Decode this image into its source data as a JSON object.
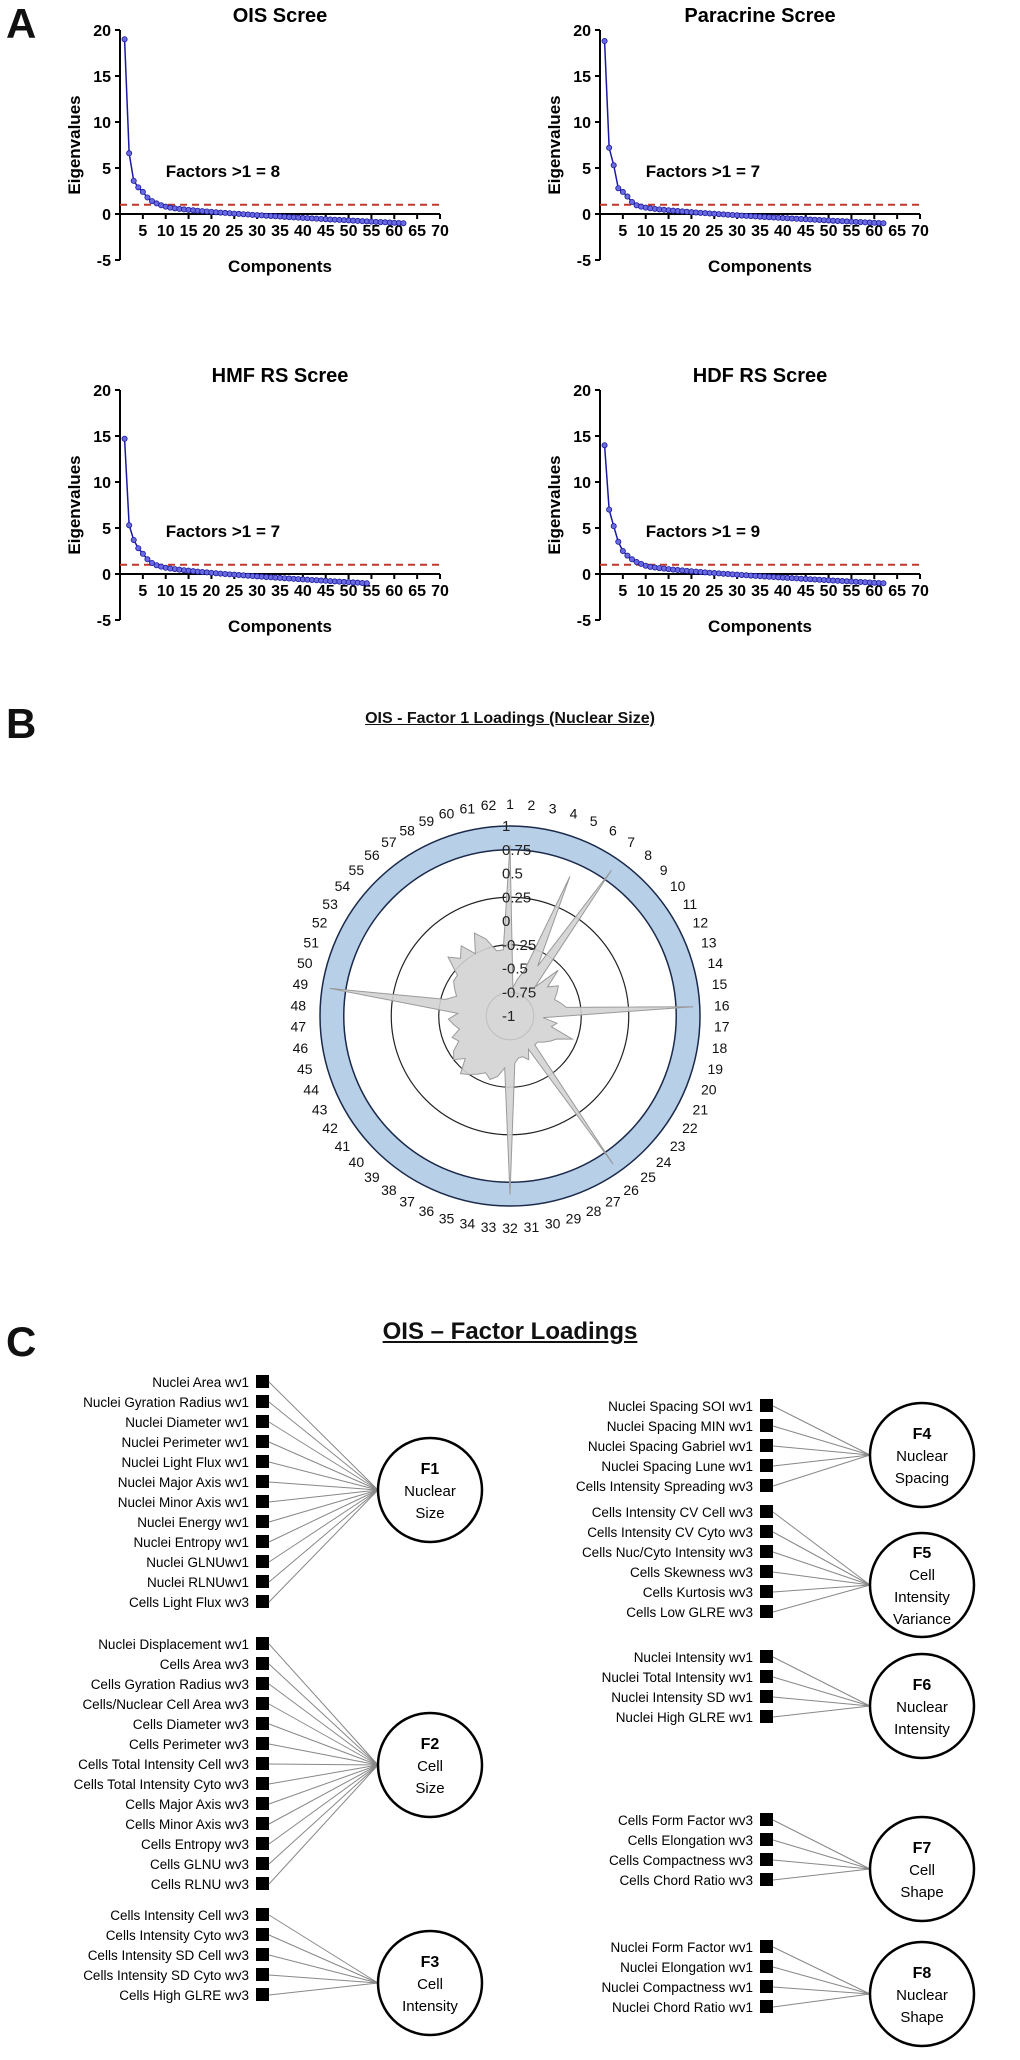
{
  "panels": {
    "a": "A",
    "b": "B",
    "c": "C"
  },
  "chart_data": [
    {
      "type": "line",
      "title": "OIS Scree",
      "xlabel": "Components",
      "ylabel": "Eigenvalues",
      "xlim": [
        0,
        70
      ],
      "ylim": [
        -5,
        20
      ],
      "xticks": [
        5,
        10,
        15,
        20,
        25,
        30,
        35,
        40,
        45,
        50,
        55,
        60,
        65,
        70
      ],
      "yticks": [
        -5,
        0,
        5,
        10,
        15,
        20
      ],
      "threshold": 1,
      "annotation": "Factors >1 = 8",
      "n": 62,
      "values": [
        19,
        6.6,
        3.6,
        2.9,
        2.4,
        1.8,
        1.4,
        1.15,
        0.95,
        0.8
      ]
    },
    {
      "type": "line",
      "title": "Paracrine Scree",
      "xlabel": "Components",
      "ylabel": "Eigenvalues",
      "xlim": [
        0,
        70
      ],
      "ylim": [
        -5,
        20
      ],
      "xticks": [
        5,
        10,
        15,
        20,
        25,
        30,
        35,
        40,
        45,
        50,
        55,
        60,
        65,
        70
      ],
      "yticks": [
        -5,
        0,
        5,
        10,
        15,
        20
      ],
      "threshold": 1,
      "annotation": "Factors >1 = 7",
      "n": 62,
      "values": [
        18.8,
        7.2,
        5.3,
        2.8,
        2.4,
        1.9,
        1.3,
        0.95,
        0.8
      ]
    },
    {
      "type": "line",
      "title": "HMF RS Scree",
      "xlabel": "Components",
      "ylabel": "Eigenvalues",
      "xlim": [
        0,
        70
      ],
      "ylim": [
        -5,
        20
      ],
      "xticks": [
        5,
        10,
        15,
        20,
        25,
        30,
        35,
        40,
        45,
        50,
        55,
        60,
        65,
        70
      ],
      "yticks": [
        -5,
        0,
        5,
        10,
        15,
        20
      ],
      "threshold": 1,
      "annotation": "Factors >1 = 7",
      "n": 54,
      "values": [
        14.7,
        5.3,
        3.7,
        2.8,
        2.2,
        1.6,
        1.2,
        0.95,
        0.8
      ]
    },
    {
      "type": "line",
      "title": "HDF RS Scree",
      "xlabel": "Components",
      "ylabel": "Eigenvalues",
      "xlim": [
        0,
        70
      ],
      "ylim": [
        -5,
        20
      ],
      "xticks": [
        5,
        10,
        15,
        20,
        25,
        30,
        35,
        40,
        45,
        50,
        55,
        60,
        65,
        70
      ],
      "yticks": [
        -5,
        0,
        5,
        10,
        15,
        20
      ],
      "threshold": 1,
      "annotation": "Factors >1 = 9",
      "n": 62,
      "values": [
        14,
        7,
        5.2,
        3.5,
        2.5,
        2,
        1.6,
        1.3,
        1.1,
        0.9
      ]
    },
    {
      "type": "radar",
      "title": "OIS - Factor 1 Loadings (Nuclear Size)",
      "rlim": [
        -1,
        1
      ],
      "ticks": [
        "1",
        "0.75",
        "0.5",
        "0.25",
        "0",
        "-0.25",
        "-0.5",
        "-0.75",
        "-1"
      ],
      "highlight_band": [
        0.75,
        1
      ],
      "categories": [
        "1",
        "2",
        "3",
        "4",
        "5",
        "6",
        "7",
        "8",
        "9",
        "10",
        "11",
        "12",
        "13",
        "14",
        "15",
        "16",
        "17",
        "18",
        "19",
        "20",
        "21",
        "22",
        "23",
        "24",
        "25",
        "26",
        "27",
        "28",
        "29",
        "30",
        "31",
        "32",
        "33",
        "34",
        "35",
        "36",
        "37",
        "38",
        "39",
        "40",
        "41",
        "42",
        "43",
        "44",
        "45",
        "46",
        "47",
        "48",
        "49",
        "50",
        "51",
        "52",
        "53",
        "54",
        "55",
        "56",
        "57",
        "58",
        "59",
        "60",
        "61",
        "62"
      ],
      "values": [
        0.8,
        -0.7,
        -0.6,
        -0.5,
        0.6,
        -0.4,
        0.87,
        -0.6,
        -0.3,
        -0.5,
        -0.4,
        -0.45,
        -0.5,
        -0.45,
        -0.4,
        0.93,
        -0.65,
        -0.5,
        -0.55,
        -0.3,
        -0.45,
        -0.5,
        -0.55,
        -0.6,
        -0.6,
        0.9,
        -0.6,
        -0.5,
        -0.55,
        -0.55,
        -0.5,
        0.88,
        -0.45,
        -0.35,
        -0.3,
        -0.35,
        -0.3,
        -0.25,
        -0.2,
        -0.35,
        -0.25,
        -0.3,
        -0.4,
        -0.35,
        -0.45,
        -0.4,
        -0.35,
        -0.45,
        0.92,
        -0.3,
        -0.4,
        -0.35,
        -0.3,
        -0.3,
        -0.1,
        -0.2,
        -0.1,
        -0.25,
        -0.05,
        -0.15,
        -0.3,
        -0.3
      ]
    }
  ],
  "panel_c": {
    "title": "OIS – Factor Loadings",
    "factors": [
      {
        "id": "F1",
        "name1": "Nuclear",
        "name2": "Size",
        "name3": "",
        "items": [
          "Nuclei Area wv1",
          "Nuclei Gyration Radius wv1",
          "Nuclei Diameter wv1",
          "Nuclei Perimeter wv1",
          "Nuclei Light Flux wv1",
          "Nuclei Major Axis wv1",
          "Nuclei Minor Axis wv1",
          "Nuclei Energy wv1",
          "Nuclei Entropy wv1",
          "Nuclei GLNUwv1",
          "Nuclei RLNUwv1",
          "Cells Light Flux wv3"
        ]
      },
      {
        "id": "F2",
        "name1": "Cell",
        "name2": "Size",
        "name3": "",
        "items": [
          "Nuclei Displacement wv1",
          "Cells Area wv3",
          "Cells Gyration Radius wv3",
          "Cells/Nuclear Cell Area wv3",
          "Cells Diameter wv3",
          "Cells Perimeter wv3",
          "Cells Total Intensity Cell  wv3",
          "Cells Total Intensity Cyto  wv3",
          "Cells Major Axis wv3",
          "Cells Minor Axis wv3",
          "Cells Entropy wv3",
          "Cells GLNU wv3",
          "Cells RLNU wv3"
        ]
      },
      {
        "id": "F3",
        "name1": "Cell",
        "name2": "Intensity",
        "name3": "",
        "items": [
          "Cells Intensity Cell wv3",
          "Cells Intensity Cyto wv3",
          "Cells Intensity SD Cell wv3",
          "Cells Intensity SD Cyto wv3",
          "Cells High GLRE wv3"
        ]
      },
      {
        "id": "F4",
        "name1": "Nuclear",
        "name2": "Spacing",
        "name3": "",
        "items": [
          "Nuclei Spacing SOI wv1",
          "Nuclei Spacing MIN  wv1",
          "Nuclei Spacing Gabriel wv1",
          "Nuclei Spacing Lune  wv1",
          "Cells Intensity Spreading wv3"
        ]
      },
      {
        "id": "F5",
        "name1": "Cell",
        "name2": "Intensity",
        "name3": "Variance",
        "items": [
          "Cells Intensity CV Cell wv3",
          "Cells Intensity CV Cyto wv3",
          "Cells Nuc/Cyto Intensity wv3",
          "Cells Skewness wv3",
          "Cells Kurtosis wv3",
          "Cells Low GLRE wv3"
        ]
      },
      {
        "id": "F6",
        "name1": "Nuclear",
        "name2": "Intensity",
        "name3": "",
        "items": [
          "Nuclei Intensity wv1",
          "Nuclei Total Intensity wv1",
          "Nuclei Intensity SD wv1",
          "Nuclei High GLRE wv1"
        ]
      },
      {
        "id": "F7",
        "name1": "Cell",
        "name2": "Shape",
        "name3": "",
        "items": [
          "Cells Form Factor wv3",
          "Cells Elongation wv3",
          "Cells Compactness wv3",
          "Cells Chord Ratio wv3"
        ]
      },
      {
        "id": "F8",
        "name1": "Nuclear",
        "name2": "Shape",
        "name3": "",
        "items": [
          "Nuclei Form Factor wv1",
          "Nuclei Elongation wv1",
          "Nuclei Compactness wv1",
          "Nuclei Chord Ratio wv1"
        ]
      }
    ]
  },
  "colors": {
    "series": "#1a1aa0",
    "marker": "#6a6ae0",
    "threshold": "#c0392b",
    "band": "#b8cfe8",
    "radar_fill": "#d3d3d3"
  }
}
